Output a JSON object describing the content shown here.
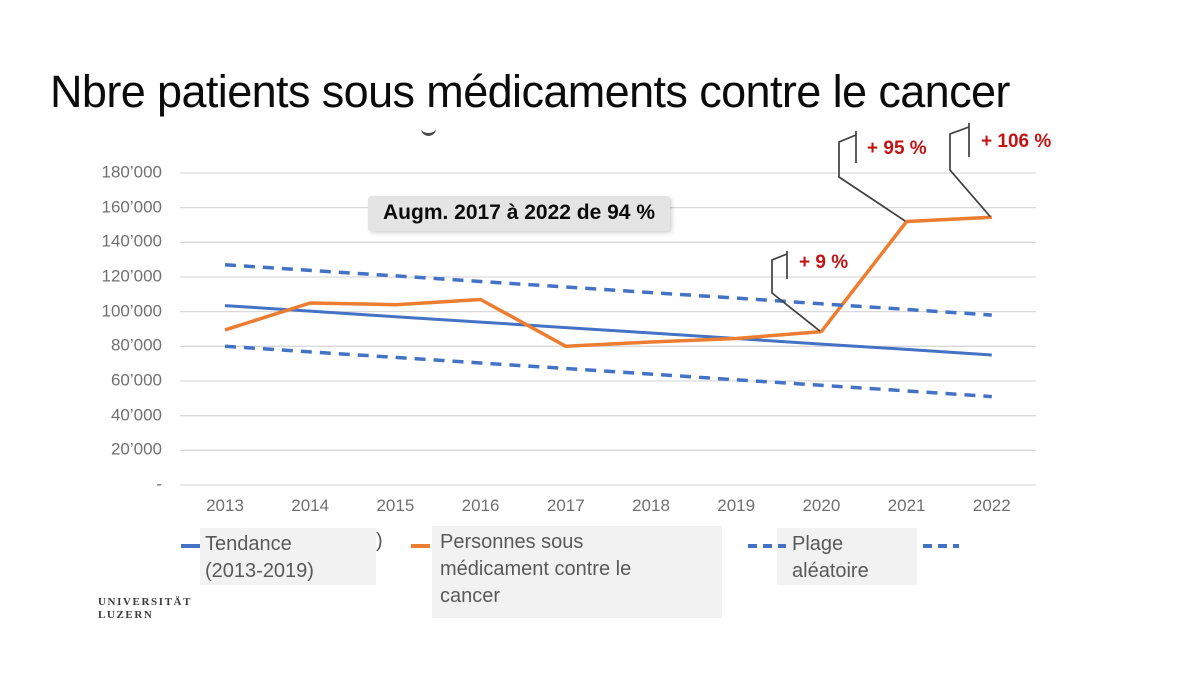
{
  "title": "Nbre patients sous médicaments contre le cancer",
  "highlight_note": "Augm. 2017 à 2022 de 94 %",
  "colors": {
    "trend_blue": "#4472C4",
    "series_orange": "#ED7D31",
    "annotation_red": "#C21414",
    "gridline": "#d9d9d9",
    "axis_text": "#707070",
    "legend_text": "#595959",
    "callout_line": "#3f3f3f"
  },
  "legend": [
    {
      "marker": "line-solid",
      "color": "#4472C4",
      "lines": [
        "Tendance",
        "(2013-2019)"
      ]
    },
    {
      "marker": "line-solid",
      "color": "#ED7D31",
      "lines": [
        "Personnes sous",
        "médicament contre le",
        "cancer"
      ]
    },
    {
      "marker": "line-dashed",
      "color": "#4472C4",
      "lines": [
        "Plage",
        "aléatoire"
      ]
    },
    {
      "marker": "line-dashed",
      "color": "#4472C4",
      "lines": []
    }
  ],
  "legend_artifact": ")",
  "logo": {
    "line1": "UNIVERSITÄT",
    "line2": "LUZERN"
  },
  "chart_data": {
    "type": "line",
    "x": [
      "2013",
      "2014",
      "2015",
      "2016",
      "2017",
      "2018",
      "2019",
      "2020",
      "2021",
      "2022"
    ],
    "series": [
      {
        "name": "Tendance (2013-2019)",
        "color": "#4472C4",
        "style": "solid",
        "width": 3,
        "values": [
          103500,
          100300,
          97100,
          94000,
          90800,
          87700,
          84500,
          81300,
          78200,
          75000
        ]
      },
      {
        "name": "Personnes sous médicament contre le cancer",
        "color": "#ED7D31",
        "style": "solid",
        "width": 3.5,
        "values": [
          89500,
          105000,
          104000,
          107000,
          80000,
          82500,
          84500,
          88500,
          152000,
          154500
        ]
      },
      {
        "name": "Plage aléatoire (limite haute)",
        "color": "#4472C4",
        "style": "dashed",
        "width": 3.5,
        "values": [
          127000,
          123800,
          120600,
          117400,
          114200,
          111000,
          107800,
          104500,
          101300,
          98000
        ]
      },
      {
        "name": "Plage aléatoire (limite basse)",
        "color": "#4472C4",
        "style": "dashed",
        "width": 3.5,
        "values": [
          80000,
          76800,
          73600,
          70400,
          67200,
          64000,
          60700,
          57500,
          54300,
          51000
        ]
      }
    ],
    "ylim": [
      0,
      180000
    ],
    "ytick_step": 20000,
    "ytick_labels": [
      "-",
      "20’000",
      "40’000",
      "60’000",
      "80’000",
      "100’000",
      "120’000",
      "140’000",
      "160’000",
      "180’000"
    ],
    "grid": true,
    "legend_position": "bottom",
    "annotations": [
      {
        "text": "+ 9 %",
        "color": "#C21414",
        "x": "2020",
        "value": 88500
      },
      {
        "text": "+ 95 %",
        "color": "#C21414",
        "x": "2021",
        "value": 152000
      },
      {
        "text": "+ 106 %",
        "color": "#C21414",
        "x": "2022",
        "value": 154500
      }
    ]
  }
}
